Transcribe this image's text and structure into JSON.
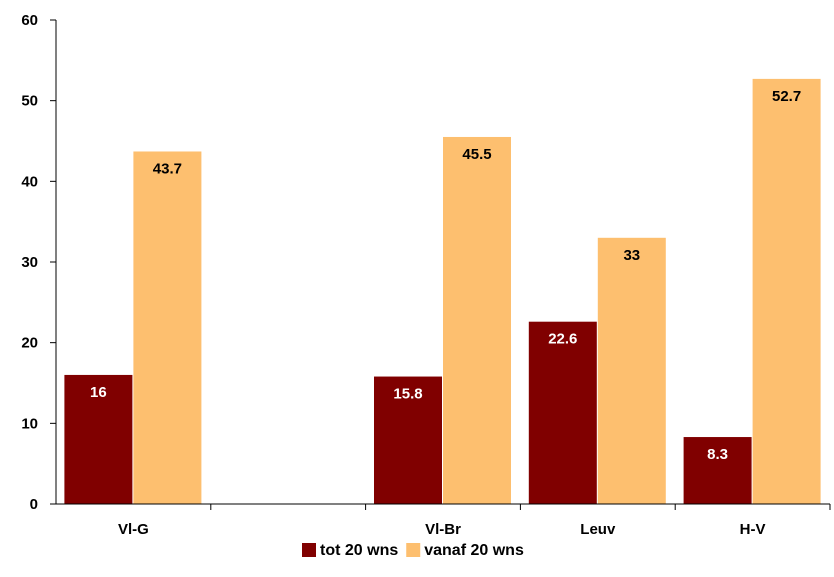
{
  "chart_data": {
    "type": "bar",
    "categories": [
      "Vl-G",
      "",
      "Vl-Br",
      "Leuv",
      "H-V"
    ],
    "series": [
      {
        "name": "tot 20 wns",
        "color": "#800000",
        "label_color": "#ffffff",
        "values": [
          16,
          null,
          15.8,
          22.6,
          8.3
        ]
      },
      {
        "name": "vanaf 20 wns",
        "color": "#fdbf6f",
        "label_color": "#000000",
        "values": [
          43.7,
          null,
          45.5,
          33,
          52.7
        ]
      }
    ],
    "title": "",
    "xlabel": "",
    "ylabel": "",
    "ylim": [
      0,
      60
    ],
    "yticks": [
      0,
      10,
      20,
      30,
      40,
      50,
      60
    ],
    "grid": false,
    "legend_position": "bottom-center"
  }
}
